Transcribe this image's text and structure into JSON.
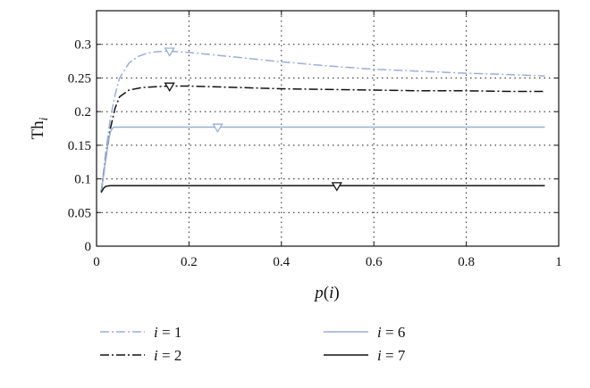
{
  "chart_data": {
    "type": "line",
    "xlabel": "p(i)",
    "ylabel": "Th_i",
    "xlim": [
      0,
      1
    ],
    "ylim": [
      0,
      0.35
    ],
    "x_ticks": [
      0,
      0.2,
      0.4,
      0.6,
      0.8,
      1
    ],
    "x_tick_labels": [
      "0",
      "0.2",
      "0.4",
      "0.6",
      "0.8",
      "1"
    ],
    "y_ticks": [
      0,
      0.05,
      0.1,
      0.15,
      0.2,
      0.25,
      0.3
    ],
    "y_tick_labels": [
      "0",
      "0.05",
      "0.1",
      "0.15",
      "0.2",
      "0.25",
      "0.3"
    ],
    "grid": true,
    "legend_position": "below",
    "series": [
      {
        "name": "i = 1",
        "color": "#9aaed8",
        "dash": "dashdot",
        "x": [
          0.01,
          0.02,
          0.03,
          0.04,
          0.05,
          0.07,
          0.09,
          0.11,
          0.13,
          0.155,
          0.2,
          0.3,
          0.4,
          0.5,
          0.6,
          0.7,
          0.8,
          0.9,
          0.97
        ],
        "y": [
          0.08,
          0.14,
          0.19,
          0.225,
          0.25,
          0.272,
          0.282,
          0.287,
          0.289,
          0.29,
          0.288,
          0.281,
          0.274,
          0.268,
          0.263,
          0.26,
          0.257,
          0.255,
          0.253
        ],
        "marker": {
          "x": 0.158,
          "y": 0.289
        }
      },
      {
        "name": "i = 2",
        "color": "#111111",
        "dash": "dashdot",
        "x": [
          0.01,
          0.02,
          0.03,
          0.04,
          0.05,
          0.07,
          0.1,
          0.155,
          0.2,
          0.3,
          0.4,
          0.5,
          0.6,
          0.7,
          0.8,
          0.9,
          0.97
        ],
        "y": [
          0.08,
          0.13,
          0.175,
          0.205,
          0.222,
          0.232,
          0.236,
          0.238,
          0.238,
          0.236,
          0.234,
          0.233,
          0.232,
          0.231,
          0.231,
          0.23,
          0.23
        ],
        "marker": {
          "x": 0.158,
          "y": 0.237
        }
      },
      {
        "name": "i = 6",
        "color": "#9aaed8",
        "dash": "solid",
        "x": [
          0.01,
          0.02,
          0.025,
          0.03,
          0.035,
          0.04,
          0.05,
          0.1,
          0.26,
          0.5,
          0.97
        ],
        "y": [
          0.08,
          0.13,
          0.155,
          0.17,
          0.176,
          0.177,
          0.177,
          0.177,
          0.177,
          0.177,
          0.177
        ],
        "marker": {
          "x": 0.262,
          "y": 0.176
        }
      },
      {
        "name": "i = 7",
        "color": "#111111",
        "dash": "solid",
        "x": [
          0.01,
          0.015,
          0.02,
          0.03,
          0.05,
          0.2,
          0.52,
          0.97
        ],
        "y": [
          0.08,
          0.086,
          0.089,
          0.09,
          0.09,
          0.09,
          0.09,
          0.09
        ],
        "marker": {
          "x": 0.52,
          "y": 0.089
        }
      }
    ]
  }
}
